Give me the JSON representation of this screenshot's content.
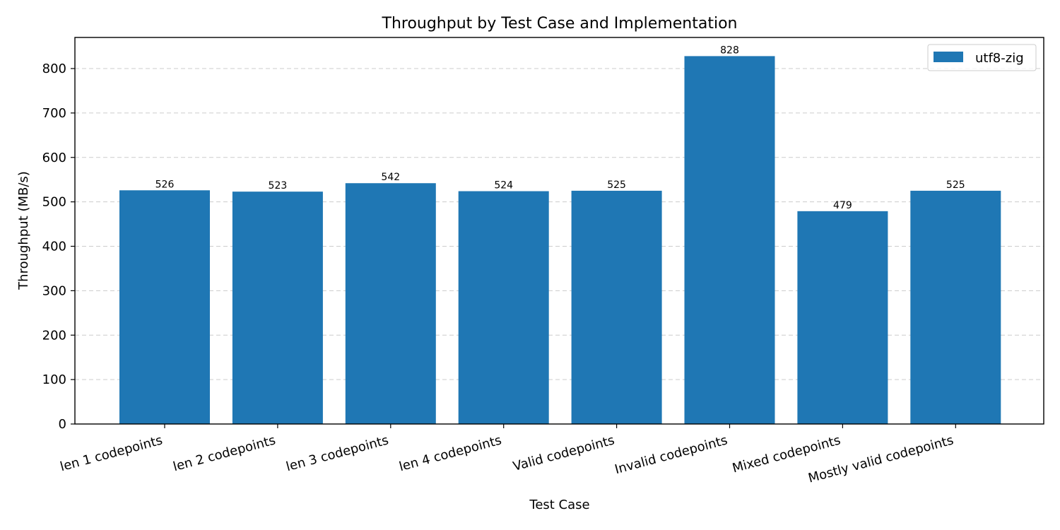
{
  "chart_data": {
    "type": "bar",
    "title": "Throughput by Test Case and Implementation",
    "xlabel": "Test Case",
    "ylabel": "Throughput (MB/s)",
    "categories": [
      "len 1 codepoints",
      "len 2 codepoints",
      "len 3 codepoints",
      "len 4 codepoints",
      "Valid codepoints",
      "Invalid codepoints",
      "Mixed codepoints",
      "Mostly valid codepoints"
    ],
    "series": [
      {
        "name": "utf8-zig",
        "values": [
          526,
          523,
          542,
          524,
          525,
          828,
          479,
          525
        ],
        "color": "#1f77b4"
      }
    ],
    "data_labels": [
      "526",
      "523",
      "542",
      "524",
      "525",
      "828",
      "479",
      "525"
    ],
    "ylim": [
      0,
      870
    ],
    "yticks": [
      0,
      100,
      200,
      300,
      400,
      500,
      600,
      700,
      800
    ],
    "grid": "y, dashed",
    "legend_position": "top-right"
  }
}
